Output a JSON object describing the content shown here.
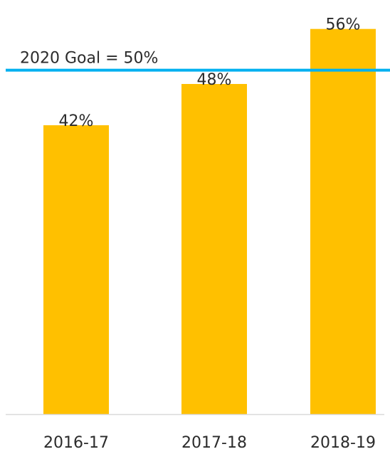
{
  "chart_data": {
    "type": "bar",
    "title": "",
    "xlabel": "",
    "ylabel": "",
    "categories": [
      "2016-17",
      "2017-18",
      "2018-19"
    ],
    "values": [
      42,
      48,
      56
    ],
    "value_labels": [
      "42%",
      "48%",
      "56%"
    ],
    "ylim": [
      0,
      60
    ],
    "grid": false,
    "legend": "none",
    "bar_color": "#FFC000",
    "reference_line": {
      "value": 50,
      "label": "2020 Goal = 50%",
      "color": "#00B0F0"
    },
    "baseline_color": "#D9D9D9"
  }
}
